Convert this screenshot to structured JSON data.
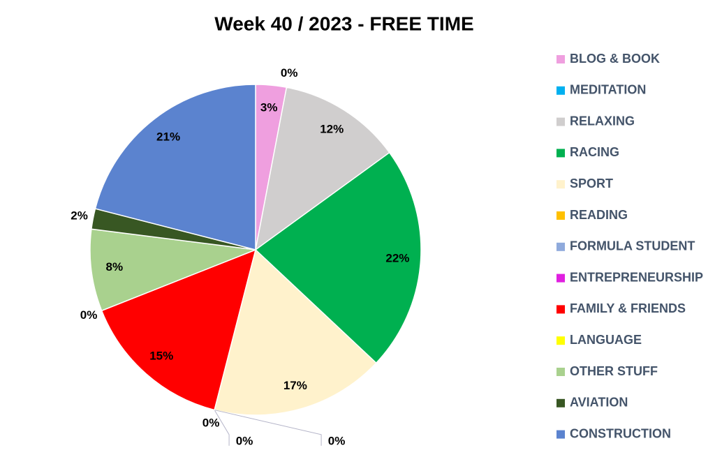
{
  "chart_data": {
    "type": "pie",
    "title": "Week 40 / 2023 - FREE TIME",
    "categories": [
      "BLOG & BOOK",
      "MEDITATION",
      "RELAXING",
      "RACING",
      "SPORT",
      "READING",
      "FORMULA STUDENT",
      "ENTREPRENEURSHIP",
      "FAMILY & FRIENDS",
      "LANGUAGE",
      "OTHER STUFF",
      "AVIATION",
      "CONSTRUCTION"
    ],
    "values": [
      3,
      0,
      12,
      22,
      17,
      0,
      0,
      0,
      15,
      0,
      8,
      2,
      21
    ],
    "value_labels": [
      "3%",
      "0%",
      "12%",
      "22%",
      "17%",
      "0%",
      "0%",
      "0%",
      "15%",
      "0%",
      "8%",
      "2%",
      "21%"
    ],
    "colors": [
      "#ef9fdf",
      "#00b0f0",
      "#d0cece",
      "#00b050",
      "#fff2cc",
      "#ffc000",
      "#8faadc",
      "#e020e0",
      "#ff0000",
      "#ffff00",
      "#a9d18e",
      "#385723",
      "#5b83cf"
    ],
    "legend": "right"
  }
}
